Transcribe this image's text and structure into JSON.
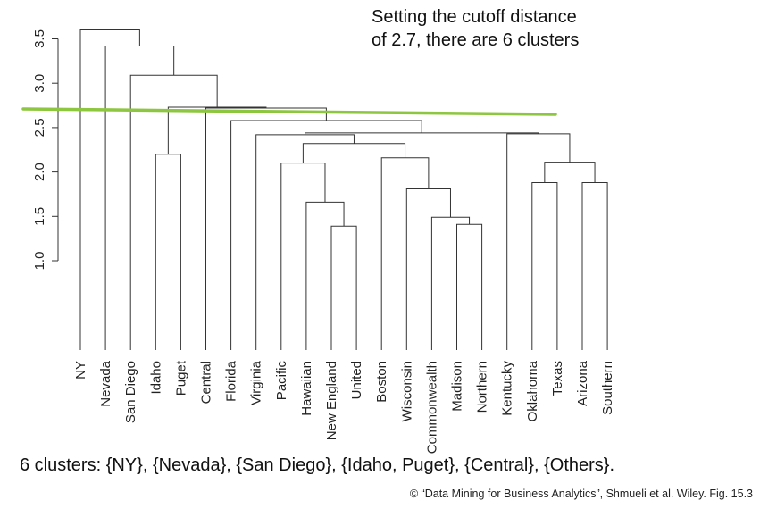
{
  "chart_data": {
    "type": "dendrogram",
    "title": "",
    "xlabel": "",
    "ylabel": "",
    "ylim": [
      0.9,
      3.65
    ],
    "yticks": [
      "1.0",
      "1.5",
      "2.0",
      "2.5",
      "3.0",
      "3.5"
    ],
    "leaves": [
      "NY",
      "Nevada",
      "San Diego",
      "Idaho",
      "Puget",
      "Central",
      "Florida",
      "Virginia",
      "Pacific",
      "Hawaiian",
      "New England",
      "United",
      "Boston",
      "Wisconsin",
      "Commonwealth",
      "Madison",
      "Northern",
      "Kentucky",
      "Oklahoma",
      "Texas",
      "Arizona",
      "Southern"
    ],
    "merges": [
      {
        "a": "L10",
        "b": "L11",
        "h": 1.39
      },
      {
        "a": "L15",
        "b": "L16",
        "h": 1.41
      },
      {
        "a": "L9",
        "b": "M0",
        "h": 1.66
      },
      {
        "a": "L14",
        "b": "M1",
        "h": 1.49
      },
      {
        "a": "L13",
        "b": "M3",
        "h": 1.81
      },
      {
        "a": "L18",
        "b": "L19",
        "h": 1.88
      },
      {
        "a": "L20",
        "b": "L21",
        "h": 1.88
      },
      {
        "a": "L8",
        "b": "M2",
        "h": 2.1
      },
      {
        "a": "M5",
        "b": "M6",
        "h": 2.11
      },
      {
        "a": "L12",
        "b": "M4",
        "h": 2.16
      },
      {
        "a": "L3",
        "b": "L4",
        "h": 2.2
      },
      {
        "a": "M7",
        "b": "M9",
        "h": 2.32
      },
      {
        "a": "L7",
        "b": "M11",
        "h": 2.42
      },
      {
        "a": "L17",
        "b": "M8",
        "h": 2.43
      },
      {
        "a": "M12",
        "b": "M13",
        "h": 2.44
      },
      {
        "a": "L6",
        "b": "M14",
        "h": 2.58
      },
      {
        "a": "L5",
        "b": "M15",
        "h": 2.72
      },
      {
        "a": "M10",
        "b": "M16",
        "h": 2.73
      },
      {
        "a": "L2",
        "b": "M17",
        "h": 3.09
      },
      {
        "a": "L1",
        "b": "M18",
        "h": 3.42
      },
      {
        "a": "L0",
        "b": "M19",
        "h": 3.6
      }
    ],
    "cutoff": {
      "value": 2.7,
      "color": "#8dc63f"
    },
    "grid": false
  },
  "annotation": "Setting the cutoff distance\nof 2.7, there are 6 clusters",
  "caption": "6 clusters: {NY}, {Nevada}, {San Diego}, {Idaho, Puget}, {Central}, {Others}.",
  "credit": "© “Data Mining for Business Analytics”, Shmueli et al. Wiley. Fig. 15.3"
}
